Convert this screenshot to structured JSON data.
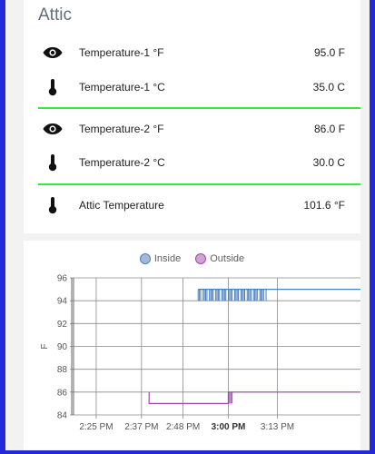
{
  "card": {
    "title": "Attic",
    "rows": [
      {
        "icon": "eye-icon",
        "label": "Temperature-1 °F",
        "value": "95.0 F"
      },
      {
        "icon": "thermometer-icon",
        "label": "Temperature-1 °C",
        "value": "35.0 C"
      },
      {
        "icon": "eye-icon",
        "label": "Temperature-2 °F",
        "value": "86.0 F"
      },
      {
        "icon": "thermometer-icon",
        "label": "Temperature-2 °C",
        "value": "30.0 C"
      },
      {
        "icon": "thermometer-icon",
        "label": "Attic Temperature",
        "value": "101.6 °F"
      }
    ],
    "divider_color": "#3de63d"
  },
  "frame_color": "#2329d9",
  "chart_data": {
    "type": "line",
    "xlabel": "",
    "ylabel": "F",
    "ylim": [
      84,
      96
    ],
    "yticks": [
      84,
      86,
      88,
      90,
      92,
      94,
      96
    ],
    "xlim": [
      "14:19",
      "15:35"
    ],
    "xticks": [
      {
        "time": "14:25",
        "label": "2:25 PM",
        "bold": false
      },
      {
        "time": "14:37",
        "label": "2:37 PM",
        "bold": false
      },
      {
        "time": "14:48",
        "label": "2:48 PM",
        "bold": false
      },
      {
        "time": "15:00",
        "label": "3:00 PM",
        "bold": true
      },
      {
        "time": "15:13",
        "label": "3:13 PM",
        "bold": false
      }
    ],
    "grid": true,
    "legend_position": "top-center",
    "series": [
      {
        "name": "Inside",
        "color": "#4a7fbf",
        "fill": "#a4b9d6",
        "points": [
          [
            "14:52",
            95
          ],
          [
            "15:35",
            95
          ]
        ],
        "oscillation": {
          "from": "14:52",
          "to": "15:10",
          "low": 94,
          "high": 95
        }
      },
      {
        "name": "Outside",
        "color": "#9d4aa6",
        "fill": "#cfa4d3",
        "points": [
          [
            "14:39",
            86
          ],
          [
            "14:39",
            85
          ],
          [
            "15:00",
            85
          ],
          [
            "15:00",
            86
          ],
          [
            "15:35",
            86
          ]
        ],
        "oscillation": {
          "from": "15:00",
          "to": "15:01",
          "low": 85,
          "high": 86
        }
      }
    ]
  }
}
